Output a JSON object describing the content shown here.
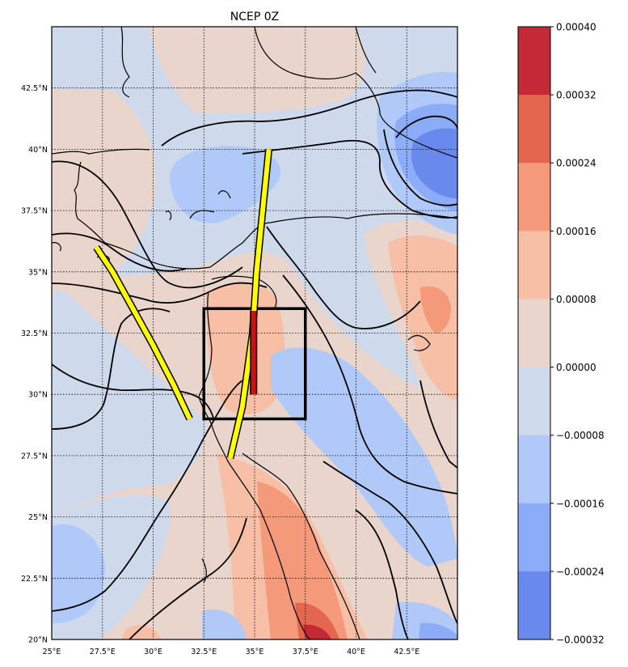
{
  "title": "NCEP 0Z",
  "map": {
    "lon_range": [
      25,
      45
    ],
    "lat_range": [
      20,
      45
    ],
    "lon_ticks": [
      "25°E",
      "27.5°E",
      "30°E",
      "32.5°E",
      "35°E",
      "37.5°E",
      "40°E",
      "42.5°E"
    ],
    "lat_ticks": [
      "20°N",
      "22.5°N",
      "25°N",
      "27.5°N",
      "30°N",
      "32.5°N",
      "35°N",
      "37.5°N",
      "40°N",
      "42.5°N"
    ],
    "gridlines": true,
    "study_box": {
      "lon": [
        32.5,
        37.5
      ],
      "lat": [
        29,
        33.5
      ],
      "color": "#000000"
    },
    "yellow_tracks": [
      [
        [
          27.2,
          36.0
        ],
        [
          28.0,
          35.0
        ],
        [
          29.0,
          33.5
        ],
        [
          30.0,
          32.0
        ],
        [
          31.0,
          30.4
        ],
        [
          31.8,
          29.0
        ]
      ],
      [
        [
          33.8,
          27.4
        ],
        [
          34.4,
          29.5
        ],
        [
          34.9,
          32.5
        ],
        [
          35.1,
          35.0
        ],
        [
          35.4,
          37.5
        ],
        [
          35.7,
          40.0
        ]
      ]
    ],
    "red_segment": [
      [
        34.95,
        30.0
      ],
      [
        34.95,
        33.4
      ]
    ],
    "colors": {
      "track": "#ffff00",
      "segment": "#cc1111",
      "contour": "#000000",
      "coast": "#000000"
    }
  },
  "colorbar": {
    "levels": [
      "0.00040",
      "0.00032",
      "0.00024",
      "0.00016",
      "0.00008",
      "0.00000",
      "−0.00008",
      "−0.00016",
      "−0.00024",
      "−0.00032"
    ],
    "colors": [
      "#c42a35",
      "#e3664f",
      "#f49a7b",
      "#f6bfa6",
      "#e9d5cb",
      "#cfd9ec",
      "#b0c9f9",
      "#8cacf8",
      "#6a89ec"
    ],
    "position": "right"
  }
}
